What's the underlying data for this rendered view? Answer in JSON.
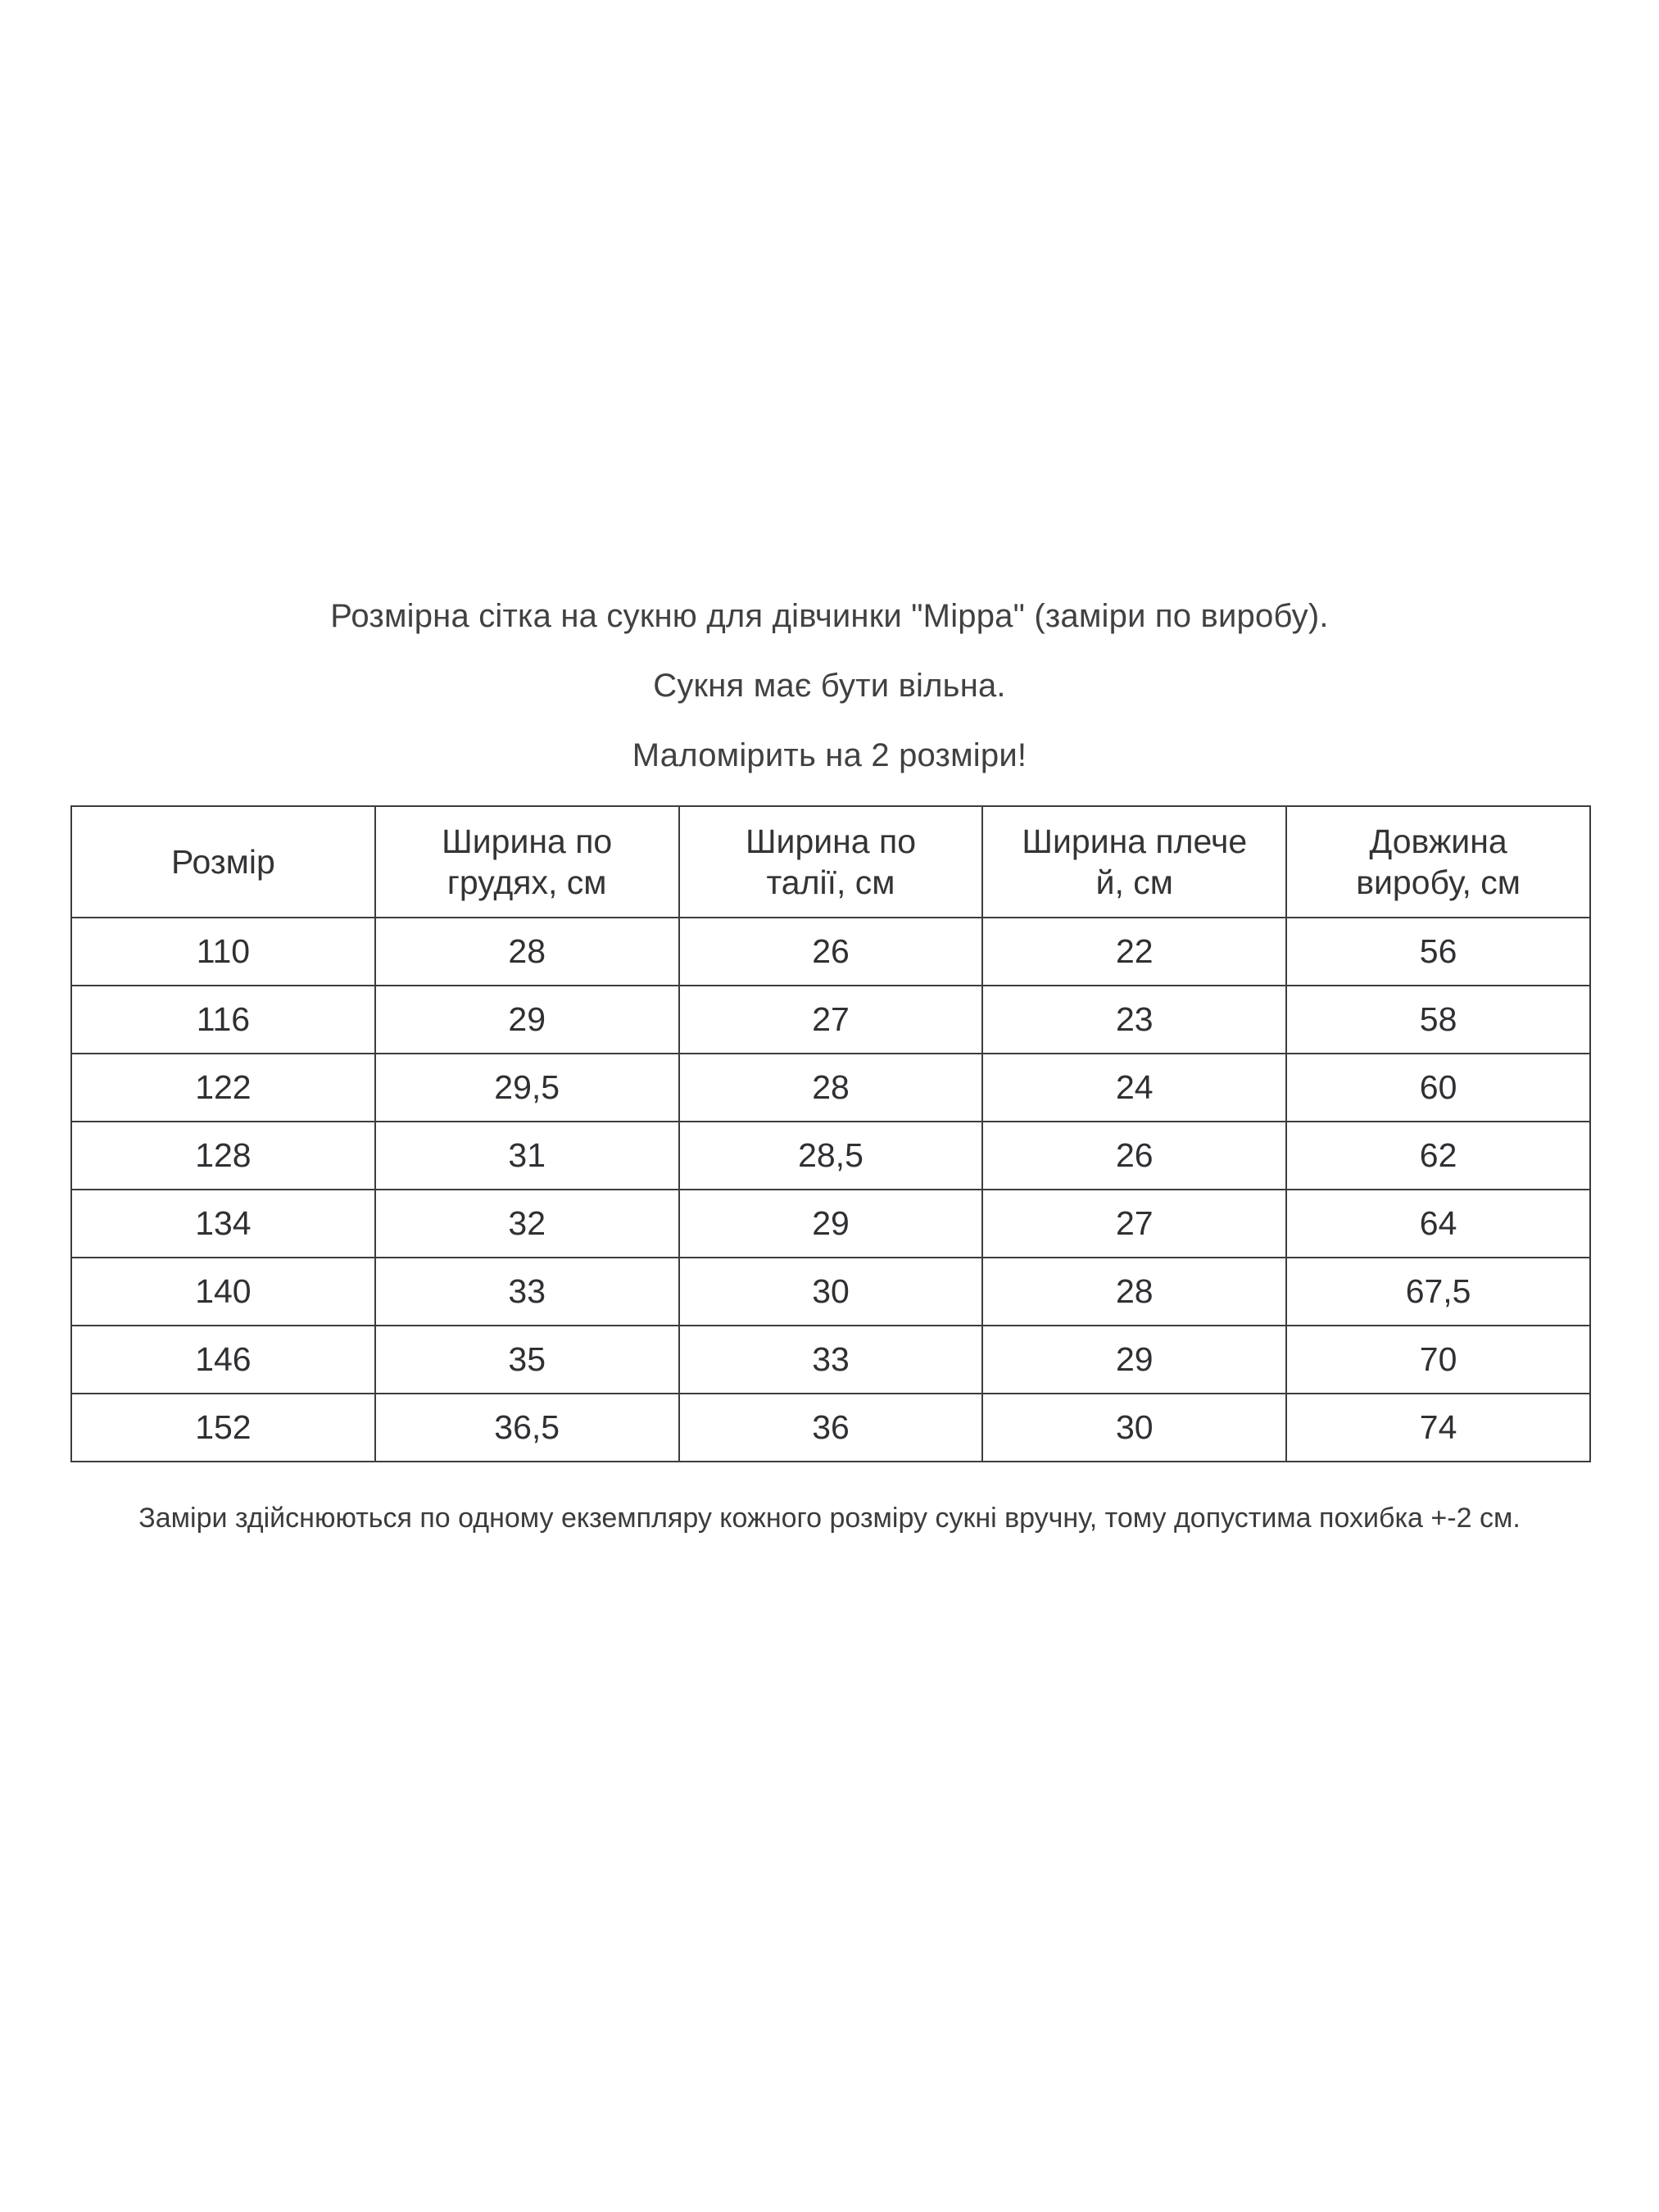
{
  "titles": {
    "line1": "Розмірна сітка на сукню для дівчинки \"Мірра\" (заміри по виробу).",
    "line2": "Сукня має бути вільна.",
    "line3": "Маломірить на 2 розміри!"
  },
  "table": {
    "headers": [
      "Розмір",
      "Ширина по\nгрудях, см",
      "Ширина по\nталії, см",
      "Ширина плече\nй, см",
      "Довжина\nвиробу, см"
    ],
    "rows": [
      [
        "110",
        "28",
        "26",
        "22",
        "56"
      ],
      [
        "116",
        "29",
        "27",
        "23",
        "58"
      ],
      [
        "122",
        "29,5",
        "28",
        "24",
        "60"
      ],
      [
        "128",
        "31",
        "28,5",
        "26",
        "62"
      ],
      [
        "134",
        "32",
        "29",
        "27",
        "64"
      ],
      [
        "140",
        "33",
        "30",
        "28",
        "67,5"
      ],
      [
        "146",
        "35",
        "33",
        "29",
        "70"
      ],
      [
        "152",
        "36,5",
        "36",
        "30",
        "74"
      ]
    ]
  },
  "footnote": "Заміри здійснюються  по одному екземпляру кожного розміру сукні вручну, тому допустима похибка +-2 см.",
  "colors": {
    "text": "#3a3a3c",
    "border": "#3d3d3f",
    "background": "#ffffff"
  }
}
